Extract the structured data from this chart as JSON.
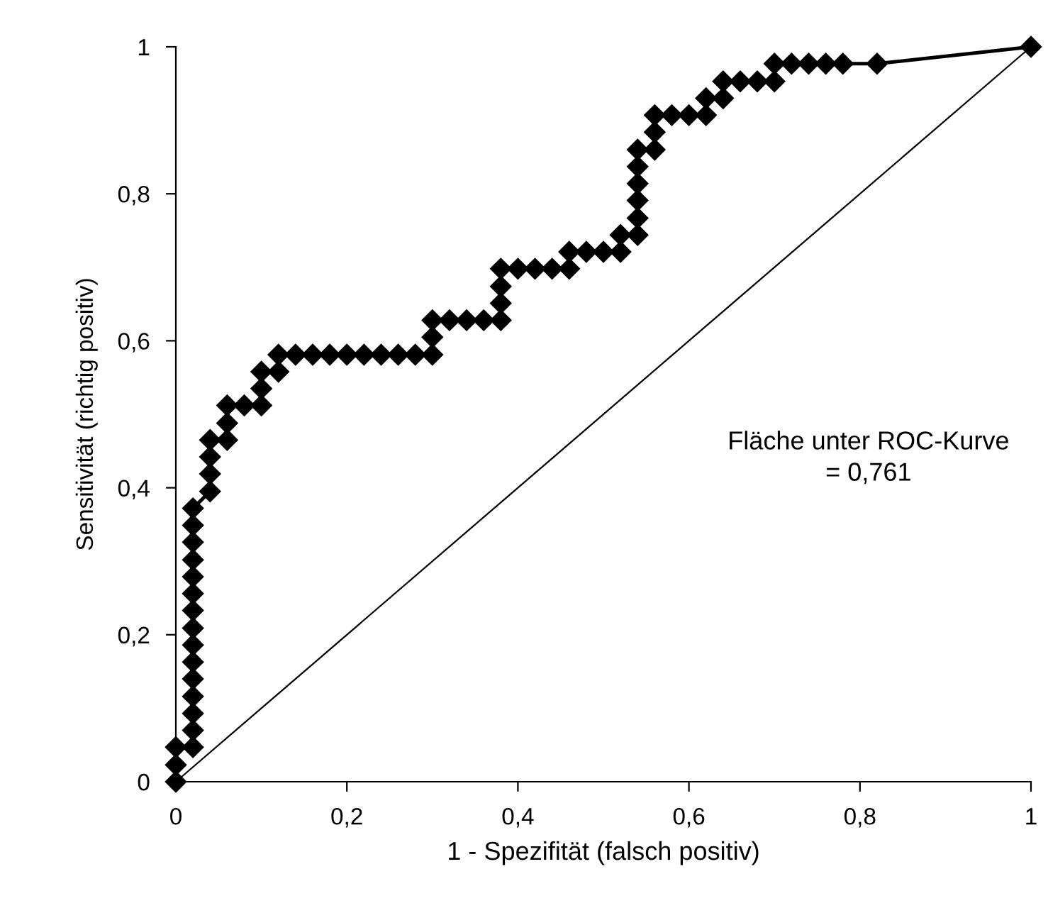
{
  "chart_data": {
    "type": "line",
    "xlabel": "1 - Spezifität (falsch positiv)",
    "ylabel": "Sensitivität (richtig positiv)",
    "annotations": [
      "Fläche unter ROC-Kurve\n= 0,761"
    ],
    "xlim": [
      0,
      1
    ],
    "ylim": [
      0,
      1
    ],
    "xticks": [
      0,
      {
        "value": 0.2,
        "label": "0,2"
      },
      {
        "value": 0.4,
        "label": "0,4"
      },
      {
        "value": 0.6,
        "label": "0,6"
      },
      {
        "value": 0.8,
        "label": "0,8"
      },
      1
    ],
    "yticks": [
      0,
      {
        "value": 0.2,
        "label": "0,2"
      },
      {
        "value": 0.4,
        "label": "0,4"
      },
      {
        "value": 0.6,
        "label": "0,6"
      },
      {
        "value": 0.8,
        "label": "0,8"
      },
      1
    ],
    "grid": false,
    "series": [
      {
        "color": "#000000",
        "marker": "diamond",
        "line_style": "solid",
        "x": [
          0,
          0,
          0,
          0.02,
          0.02,
          0.02,
          0.02,
          0.02,
          0.02,
          0.02,
          0.02,
          0.02,
          0.02,
          0.02,
          0.02,
          0.02,
          0.02,
          0.02,
          0.04,
          0.04,
          0.04,
          0.04,
          0.06,
          0.06,
          0.06,
          0.08,
          0.1,
          0.1,
          0.1,
          0.12,
          0.12,
          0.14,
          0.16,
          0.18,
          0.2,
          0.22,
          0.24,
          0.26,
          0.28,
          0.3,
          0.3,
          0.3,
          0.32,
          0.34,
          0.36,
          0.38,
          0.38,
          0.38,
          0.38,
          0.4,
          0.42,
          0.44,
          0.46,
          0.46,
          0.48,
          0.5,
          0.52,
          0.52,
          0.54,
          0.54,
          0.54,
          0.54,
          0.54,
          0.54,
          0.56,
          0.56,
          0.56,
          0.58,
          0.6,
          0.62,
          0.62,
          0.64,
          0.64,
          0.66,
          0.68,
          0.7,
          0.7,
          0.72,
          0.74,
          0.76,
          0.78,
          0.82,
          1
        ],
        "values": [
          0,
          0.023,
          0.047,
          0.047,
          0.07,
          0.093,
          0.116,
          0.14,
          0.163,
          0.186,
          0.209,
          0.233,
          0.256,
          0.279,
          0.302,
          0.326,
          0.349,
          0.372,
          0.395,
          0.419,
          0.442,
          0.465,
          0.465,
          0.488,
          0.512,
          0.512,
          0.512,
          0.535,
          0.558,
          0.558,
          0.581,
          0.581,
          0.581,
          0.581,
          0.581,
          0.581,
          0.581,
          0.581,
          0.581,
          0.581,
          0.605,
          0.628,
          0.628,
          0.628,
          0.628,
          0.628,
          0.651,
          0.674,
          0.698,
          0.698,
          0.698,
          0.698,
          0.698,
          0.721,
          0.721,
          0.721,
          0.721,
          0.744,
          0.744,
          0.767,
          0.791,
          0.814,
          0.837,
          0.86,
          0.86,
          0.884,
          0.907,
          0.907,
          0.907,
          0.907,
          0.93,
          0.93,
          0.953,
          0.953,
          0.953,
          0.953,
          0.977,
          0.977,
          0.977,
          0.977,
          0.977,
          0.977,
          1
        ]
      },
      {
        "color": "#000000",
        "marker": "none",
        "line_style": "solid",
        "x": [
          0,
          1
        ],
        "values": [
          0,
          1
        ]
      }
    ]
  }
}
